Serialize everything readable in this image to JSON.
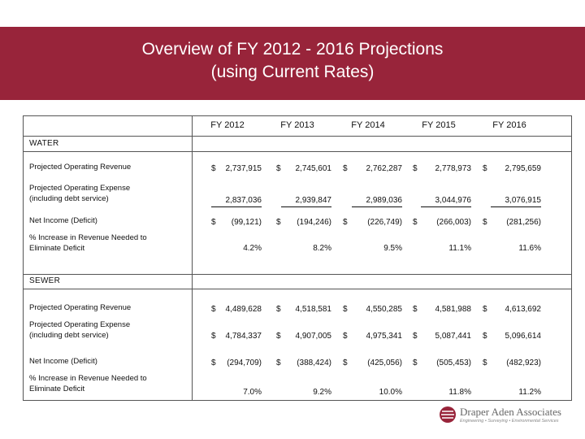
{
  "slide": {
    "title_line1": "Overview of FY 2012 - 2016 Projections",
    "title_line2": "(using Current Rates)"
  },
  "columns": [
    "FY 2012",
    "FY 2013",
    "FY 2014",
    "FY 2015",
    "FY 2016"
  ],
  "water": {
    "label": "WATER",
    "revenue_label": "Projected Operating Revenue",
    "revenue": [
      "2,737,915",
      "2,745,601",
      "2,762,287",
      "2,778,973",
      "2,795,659"
    ],
    "expense_label_1": "Projected Operating Expense",
    "expense_label_2": "(including debt service)",
    "expense": [
      "2,837,036",
      "2,939,847",
      "2,989,036",
      "3,044,976",
      "3,076,915"
    ],
    "net_label": "Net Income (Deficit)",
    "net": [
      "(99,121)",
      "(194,246)",
      "(226,749)",
      "(266,003)",
      "(281,256)"
    ],
    "pct_label_1": "% Increase in Revenue Needed to",
    "pct_label_2": "Eliminate Deficit",
    "pct": [
      "4.2%",
      "8.2%",
      "9.5%",
      "11.1%",
      "11.6%"
    ]
  },
  "sewer": {
    "label": "SEWER",
    "revenue_label": "Projected Operating Revenue",
    "revenue": [
      "4,489,628",
      "4,518,581",
      "4,550,285",
      "4,581,988",
      "4,613,692"
    ],
    "expense_label_1": "Projected Operating Expense",
    "expense_label_2": "(including debt service)",
    "expense": [
      "4,784,337",
      "4,907,005",
      "4,975,341",
      "5,087,441",
      "5,096,614"
    ],
    "net_label": "Net Income (Deficit)",
    "net": [
      "(294,709)",
      "(388,424)",
      "(425,056)",
      "(505,453)",
      "(482,923)"
    ],
    "pct_label_1": "% Increase in Revenue Needed to",
    "pct_label_2": "Eliminate Deficit",
    "pct": [
      "7.0%",
      "9.2%",
      "10.0%",
      "11.8%",
      "11.2%"
    ]
  },
  "currency_symbol": "$",
  "logo": {
    "name": "Draper Aden Associates",
    "tagline": "Engineering • Surveying • Environmental Services",
    "color": "#98243a"
  }
}
